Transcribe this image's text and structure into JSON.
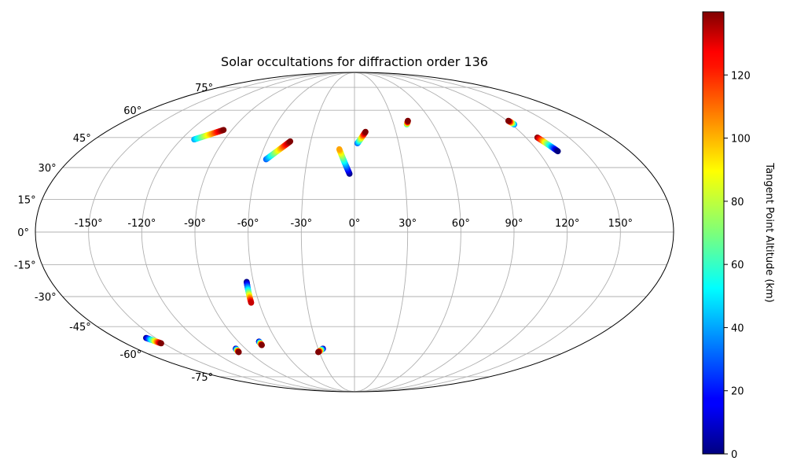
{
  "chart_data": {
    "type": "scatter",
    "projection": "mollweide",
    "title": "Solar occultations for diffraction order 136",
    "grid": true,
    "lon_ticks": [
      "-150°",
      "-120°",
      "-90°",
      "-60°",
      "-30°",
      "0°",
      "30°",
      "60°",
      "90°",
      "120°",
      "150°"
    ],
    "lat_ticks": [
      "-75°",
      "-60°",
      "-45°",
      "-30°",
      "-15°",
      "0°",
      "15°",
      "30°",
      "45°",
      "60°",
      "75°"
    ],
    "colorbar": {
      "label": "Tangent Point Altitude (km)",
      "colormap": "jet",
      "range": [
        0,
        140
      ],
      "ticks": [
        "0",
        "20",
        "40",
        "60",
        "80",
        "100",
        "120"
      ]
    },
    "series": [
      {
        "lon_start": -111,
        "lat_start": 44,
        "alt_start": 40,
        "lon_end": -96,
        "lat_end": 49,
        "alt_end": 140
      },
      {
        "lon_start": -56,
        "lat_start": 34,
        "alt_start": 30,
        "lon_end": -44,
        "lat_end": 43,
        "alt_end": 140
      },
      {
        "lon_start": -3,
        "lat_start": 27,
        "alt_start": 0,
        "lon_end": -10,
        "lat_end": 39,
        "alt_end": 100
      },
      {
        "lon_start": 2,
        "lat_start": 42,
        "alt_start": 30,
        "lon_end": 8,
        "lat_end": 48,
        "alt_end": 140
      },
      {
        "lon_start": 40,
        "lat_start": 52,
        "alt_start": 60,
        "lon_end": 42,
        "lat_end": 54,
        "alt_end": 140
      },
      {
        "lon_start": 122,
        "lat_start": 52,
        "alt_start": 30,
        "lon_end": 121,
        "lat_end": 54,
        "alt_end": 140
      },
      {
        "lon_start": 128,
        "lat_start": 45,
        "alt_start": 140,
        "lon_end": 133,
        "lat_end": 38,
        "alt_end": 0
      },
      {
        "lon_start": -64,
        "lat_start": -23,
        "alt_start": 0,
        "lon_end": -65,
        "lat_end": -33,
        "alt_end": 130
      },
      {
        "lon_start": -74,
        "lat_start": -53,
        "alt_start": 0,
        "lon_end": -74,
        "lat_end": -55,
        "alt_end": 140
      },
      {
        "lon_start": -157,
        "lat_start": -51,
        "alt_start": 0,
        "lon_end": -152,
        "lat_end": -54,
        "alt_end": 140
      },
      {
        "lon_start": -98,
        "lat_start": -57,
        "alt_start": 0,
        "lon_end": -99,
        "lat_end": -59,
        "alt_end": 140
      },
      {
        "lon_start": -26,
        "lat_start": -57,
        "alt_start": 0,
        "lon_end": -31,
        "lat_end": -59,
        "alt_end": 140
      }
    ]
  }
}
